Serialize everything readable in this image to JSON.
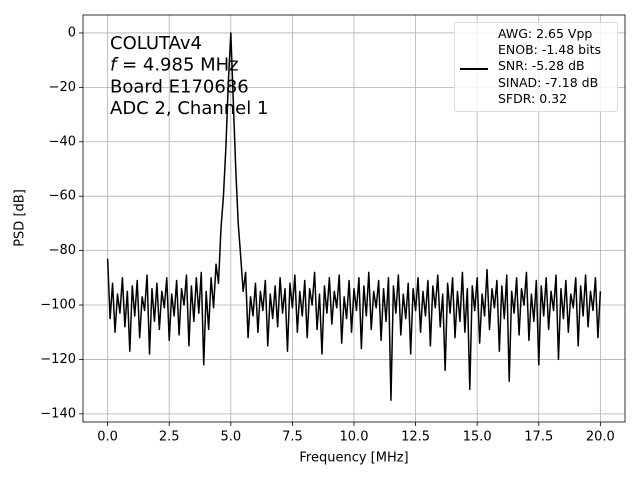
{
  "chart_data": {
    "type": "line",
    "xlabel": "Frequency [MHz]",
    "ylabel": "PSD [dB]",
    "annotation_lines": [
      "COLUTAv4",
      {
        "symbol": "f",
        "text": " = 4.985 MHz"
      },
      "Board E170686",
      "ADC 2, Channel 1"
    ],
    "x": [
      0,
      0.1,
      0.2,
      0.3,
      0.4,
      0.5,
      0.6,
      0.7,
      0.8,
      0.9,
      1,
      1.1,
      1.2,
      1.3,
      1.4,
      1.5,
      1.6,
      1.7,
      1.8,
      1.9,
      2,
      2.1,
      2.2,
      2.3,
      2.4,
      2.5,
      2.6,
      2.7,
      2.8,
      2.9,
      3,
      3.1,
      3.2,
      3.3,
      3.4,
      3.5,
      3.6,
      3.7,
      3.8,
      3.9,
      4,
      4.1,
      4.2,
      4.3,
      4.4,
      4.5,
      4.6,
      4.7,
      4.8,
      4.9,
      5,
      5.1,
      5.2,
      5.3,
      5.4,
      5.5,
      5.6,
      5.7,
      5.8,
      5.9,
      6,
      6.1,
      6.2,
      6.3,
      6.4,
      6.5,
      6.6,
      6.7,
      6.8,
      6.9,
      7,
      7.1,
      7.2,
      7.3,
      7.4,
      7.5,
      7.6,
      7.7,
      7.8,
      7.9,
      8,
      8.1,
      8.2,
      8.3,
      8.4,
      8.5,
      8.6,
      8.7,
      8.8,
      8.9,
      9,
      9.1,
      9.2,
      9.3,
      9.4,
      9.5,
      9.6,
      9.7,
      9.8,
      9.9,
      10,
      10.1,
      10.2,
      10.3,
      10.4,
      10.5,
      10.6,
      10.7,
      10.8,
      10.9,
      11,
      11.1,
      11.2,
      11.3,
      11.4,
      11.5,
      11.6,
      11.7,
      11.8,
      11.9,
      12,
      12.1,
      12.2,
      12.3,
      12.4,
      12.5,
      12.6,
      12.7,
      12.8,
      12.9,
      13,
      13.1,
      13.2,
      13.3,
      13.4,
      13.5,
      13.6,
      13.7,
      13.8,
      13.9,
      14,
      14.1,
      14.2,
      14.3,
      14.4,
      14.5,
      14.6,
      14.7,
      14.8,
      14.9,
      15,
      15.1,
      15.2,
      15.3,
      15.4,
      15.5,
      15.6,
      15.7,
      15.8,
      15.9,
      16,
      16.1,
      16.2,
      16.3,
      16.4,
      16.5,
      16.6,
      16.7,
      16.8,
      16.9,
      17,
      17.1,
      17.2,
      17.3,
      17.4,
      17.5,
      17.6,
      17.7,
      17.8,
      17.9,
      18,
      18.1,
      18.2,
      18.3,
      18.4,
      18.5,
      18.6,
      18.7,
      18.8,
      18.9,
      19,
      19.1,
      19.2,
      19.3,
      19.4,
      19.5,
      19.6,
      19.7,
      19.8,
      19.9,
      20
    ],
    "series": [
      {
        "name": "AWG: 2.65 Vpp\nENOB: -1.48 bits\nSNR: -5.28 dB\nSINAD: -7.18 dB\nSFDR: 0.32",
        "color": "#000000",
        "values": [
          -83,
          -105,
          -92,
          -110,
          -96,
          -103,
          -90,
          -108,
          -95,
          -117,
          -93,
          -104,
          -91,
          -112,
          -97,
          -102,
          -89,
          -118,
          -94,
          -106,
          -92,
          -109,
          -95,
          -101,
          -90,
          -113,
          -96,
          -104,
          -91,
          -111,
          -94,
          -100,
          -89,
          -115,
          -93,
          -106,
          -90,
          -103,
          -88,
          -122,
          -95,
          -109,
          -90,
          -101,
          -85,
          -92,
          -72,
          -60,
          -42,
          -18,
          0,
          -25,
          -50,
          -70,
          -82,
          -95,
          -88,
          -112,
          -97,
          -104,
          -92,
          -110,
          -95,
          -102,
          -91,
          -115,
          -96,
          -105,
          -93,
          -108,
          -90,
          -103,
          -94,
          -117,
          -92,
          -101,
          -89,
          -110,
          -95,
          -104,
          -91,
          -112,
          -94,
          -100,
          -88,
          -109,
          -96,
          -118,
          -93,
          -103,
          -90,
          -107,
          -95,
          -101,
          -89,
          -114,
          -97,
          -105,
          -91,
          -110,
          -94,
          -102,
          -90,
          -116,
          -93,
          -104,
          -88,
          -109,
          -95,
          -101,
          -91,
          -113,
          -94,
          -106,
          -90,
          -135,
          -93,
          -103,
          -89,
          -111,
          -96,
          -105,
          -92,
          -118,
          -94,
          -102,
          -90,
          -110,
          -95,
          -104,
          -91,
          -115,
          -93,
          -101,
          -89,
          -108,
          -96,
          -124,
          -92,
          -103,
          -90,
          -112,
          -95,
          -106,
          -88,
          -110,
          -94,
          -131,
          -93,
          -102,
          -90,
          -114,
          -96,
          -104,
          -87,
          -109,
          -94,
          -101,
          -91,
          -117,
          -93,
          -105,
          -89,
          -128,
          -95,
          -103,
          -90,
          -111,
          -94,
          -100,
          -88,
          -113,
          -96,
          -106,
          -91,
          -122,
          -93,
          -104,
          -90,
          -109,
          -95,
          -102,
          -89,
          -120,
          -94,
          -105,
          -91,
          -110,
          -96,
          -101,
          -90,
          -115,
          -93,
          -104,
          -89,
          -108,
          -95,
          -102,
          -90,
          -112,
          -95
        ]
      }
    ],
    "xlim": [
      -1,
      21
    ],
    "xticks": [
      {
        "value": 0,
        "label": "0.0"
      },
      2.5,
      {
        "value": 5,
        "label": "5.0"
      },
      7.5,
      {
        "value": 10,
        "label": "10.0"
      },
      12.5,
      {
        "value": 15,
        "label": "15.0"
      },
      17.5,
      {
        "value": 20,
        "label": "20.0"
      }
    ],
    "ylim": [
      -143,
      6.6
    ],
    "yticks": [
      0,
      {
        "value": -20,
        "label": "−20"
      },
      {
        "value": -40,
        "label": "−40"
      },
      {
        "value": -60,
        "label": "−60"
      },
      {
        "value": -80,
        "label": "−80"
      },
      {
        "value": -100,
        "label": "−100"
      },
      {
        "value": -120,
        "label": "−120"
      },
      {
        "value": -140,
        "label": "−140"
      }
    ],
    "grid": true,
    "legend": "upper right"
  }
}
